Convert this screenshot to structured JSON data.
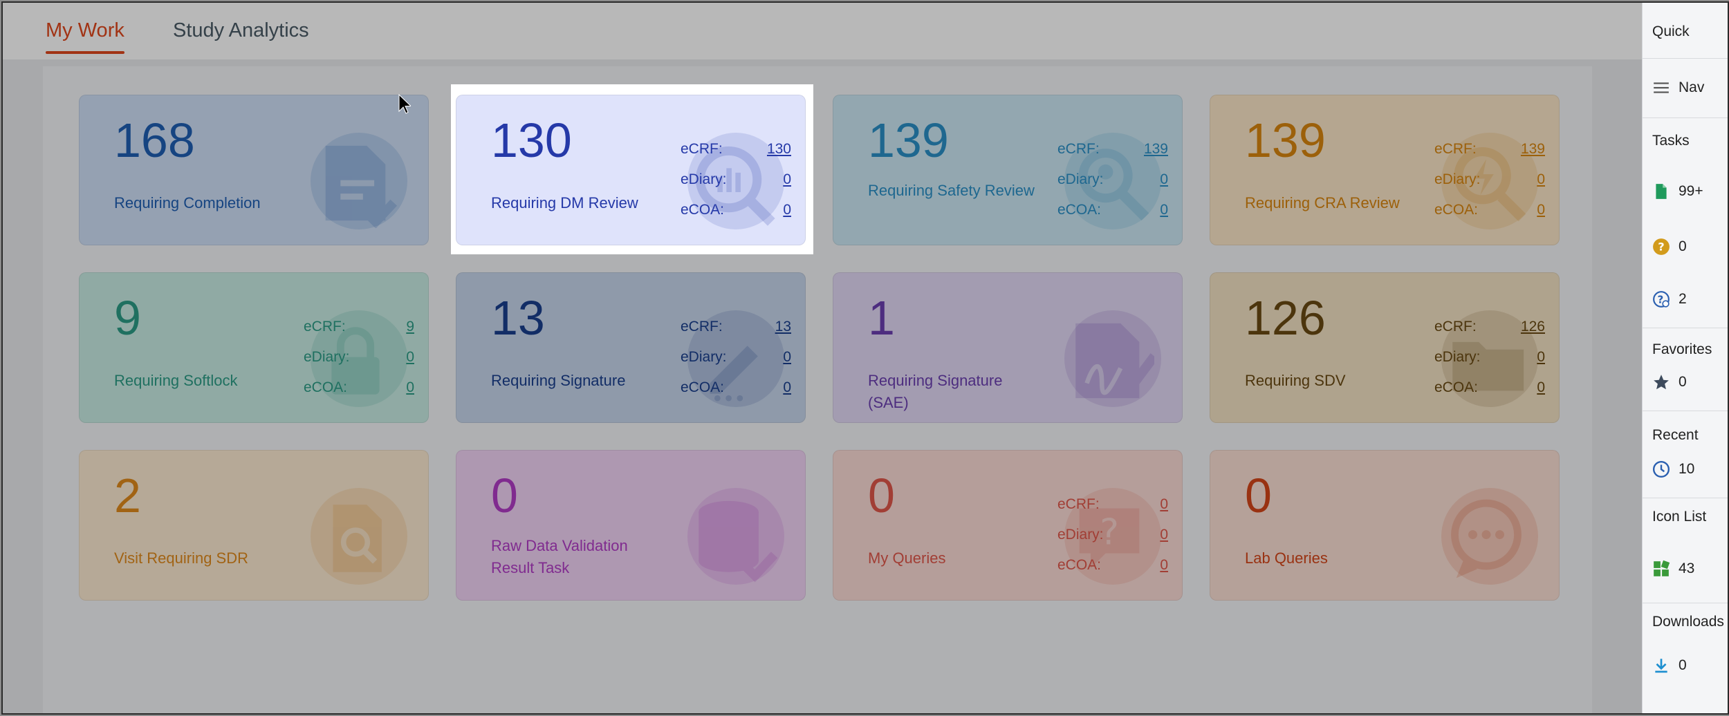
{
  "tabs": [
    {
      "label": "My Work",
      "active": true
    },
    {
      "label": "Study Analytics",
      "active": false
    }
  ],
  "metric_labels": {
    "ecrf": "eCRF:",
    "ediary": "eDiary:",
    "ecoa": "eCOA:"
  },
  "cards": [
    {
      "count": "168",
      "title": "Requiring Completion",
      "color": "#1f5fb3",
      "bg": "#cfe0f7",
      "icon": "file-check-icon"
    },
    {
      "count": "130",
      "title": "Requiring DM Review",
      "color": "#2539a8",
      "bg": "#dfe3fb",
      "icon": "magnifier-chart-icon",
      "ecrf": "130",
      "ediary": "0",
      "ecoa": "0",
      "highlighted": true
    },
    {
      "count": "139",
      "title": "Requiring Safety Review",
      "color": "#2a8fc6",
      "bg": "#cce8f4",
      "icon": "user-search-icon",
      "ecrf": "139",
      "ediary": "0",
      "ecoa": "0"
    },
    {
      "count": "139",
      "title": "Requiring CRA Review",
      "color": "#d9860f",
      "bg": "#fbe6c8",
      "icon": "search-bolt-icon",
      "ecrf": "139",
      "ediary": "0",
      "ecoa": "0"
    },
    {
      "count": "9",
      "title": "Requiring Softlock",
      "color": "#2b9c86",
      "bg": "#c8ece3",
      "icon": "lock-icon",
      "ecrf": "9",
      "ediary": "0",
      "ecoa": "0"
    },
    {
      "count": "13",
      "title": "Requiring Signature",
      "color": "#1a3f8e",
      "bg": "#c7d6ec",
      "icon": "pencil-icon",
      "ecrf": "13",
      "ediary": "0",
      "ecoa": "0"
    },
    {
      "count": "1",
      "title": "Requiring Signature (SAE)",
      "color": "#6b3fb0",
      "bg": "#e2d9f5",
      "icon": "signature-document-icon"
    },
    {
      "count": "126",
      "title": "Requiring SDV",
      "color": "#6a4a12",
      "bg": "#f3e2c4",
      "icon": "folder-icon",
      "ecrf": "126",
      "ediary": "0",
      "ecoa": "0"
    },
    {
      "count": "2",
      "title": "Visit Requiring SDR",
      "color": "#e08a1c",
      "bg": "#fcebd2",
      "icon": "file-search-icon"
    },
    {
      "count": "0",
      "title": "Raw Data Validation Result Task",
      "color": "#b23cc6",
      "bg": "#f1d3f6",
      "icon": "database-check-icon"
    },
    {
      "count": "0",
      "title": "My Queries",
      "color": "#e0574a",
      "bg": "#fbdcd6",
      "icon": "question-chat-icon",
      "ecrf": "0",
      "ediary": "0",
      "ecoa": "0"
    },
    {
      "count": "0",
      "title": "Lab Queries",
      "color": "#d4461a",
      "bg": "#fbe0d4",
      "icon": "chat-bubble-icon"
    }
  ],
  "quick_nav": {
    "title": "Quick",
    "nav_label": "Nav",
    "tasks": {
      "label": "Tasks",
      "items": [
        {
          "icon": "document-icon",
          "value": "99+",
          "color": "#1f9a5c"
        },
        {
          "icon": "question-circle-icon",
          "value": "0",
          "color": "#d29b1c"
        },
        {
          "icon": "question-clock-icon",
          "value": "2",
          "color": "#2a5fb0"
        }
      ]
    },
    "favorites": {
      "label": "Favorites",
      "value": "0"
    },
    "recent": {
      "label": "Recent",
      "value": "10"
    },
    "icon_list": {
      "label": "Icon List",
      "value": "43"
    },
    "downloads": {
      "label": "Downloads",
      "value": "0"
    }
  }
}
